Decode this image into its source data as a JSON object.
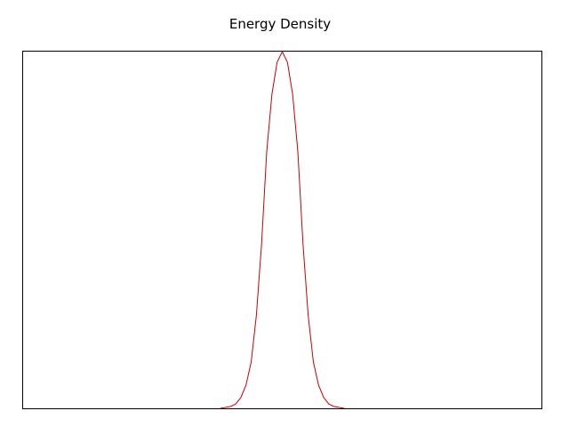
{
  "chart_data": {
    "type": "line",
    "title": "Energy Density",
    "xlabel": "",
    "ylabel": "",
    "xlim": [
      0,
      100
    ],
    "ylim": [
      0,
      1
    ],
    "grid": false,
    "series": [
      {
        "color": "#cc0000",
        "x": [
          38,
          40,
          41,
          42,
          43,
          44,
          45,
          46,
          47,
          48,
          49,
          50,
          51,
          52,
          53,
          54,
          55,
          56,
          57,
          58,
          59,
          60,
          62
        ],
        "y": [
          0.0,
          0.005,
          0.012,
          0.03,
          0.065,
          0.13,
          0.26,
          0.46,
          0.72,
          0.88,
          0.97,
          1.0,
          0.97,
          0.88,
          0.72,
          0.46,
          0.26,
          0.13,
          0.065,
          0.03,
          0.012,
          0.005,
          0.0
        ]
      }
    ]
  }
}
